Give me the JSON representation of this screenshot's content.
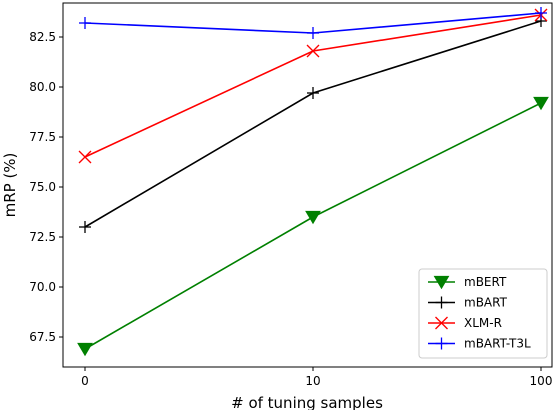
{
  "chart_data": {
    "type": "line",
    "title": "",
    "xlabel": "# of tuning samples",
    "ylabel": "mRP (%)",
    "x_ticks": [
      "0",
      "10",
      "100"
    ],
    "x_positions": [
      0,
      10,
      100
    ],
    "y_ticks": [
      "67.5",
      "70.0",
      "72.5",
      "75.0",
      "77.5",
      "80.0",
      "82.5"
    ],
    "ylim": [
      66,
      84.2
    ],
    "grid": false,
    "legend_position": "lower-right",
    "series": [
      {
        "name": "mBERT",
        "color": "#008000",
        "marker": "triangle-down",
        "x": [
          0,
          10,
          100
        ],
        "values": [
          66.9,
          73.5,
          79.2
        ]
      },
      {
        "name": "mBART",
        "color": "#000000",
        "marker": "plus",
        "x": [
          0,
          10,
          100
        ],
        "values": [
          73.0,
          79.7,
          83.3
        ]
      },
      {
        "name": "XLM-R",
        "color": "#ff0000",
        "marker": "x",
        "x": [
          0,
          10,
          100
        ],
        "values": [
          76.5,
          81.8,
          83.6
        ]
      },
      {
        "name": "mBART-T3L",
        "color": "#0000ff",
        "marker": "plus",
        "x": [
          0,
          10,
          100
        ],
        "values": [
          83.2,
          82.7,
          83.7
        ]
      }
    ]
  }
}
